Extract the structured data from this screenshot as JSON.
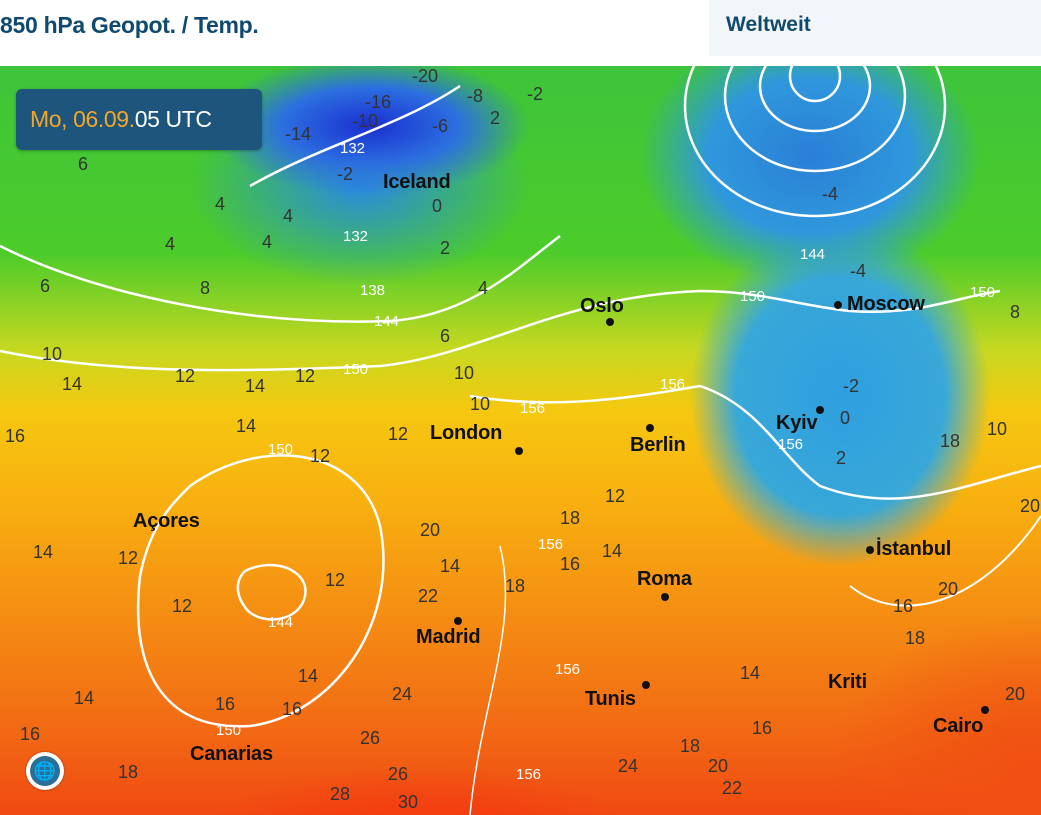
{
  "header": {
    "title": "850 hPa Geopot. / Temp.",
    "region": "Weltweit"
  },
  "timestamp": {
    "date": "Mo, 06.09.",
    "time": "05 UTC"
  },
  "globe_button": {
    "icon": "globe-icon"
  },
  "cities": [
    "Iceland",
    "Oslo",
    "Moscow",
    "London",
    "Berlin",
    "Kyiv",
    "Açores",
    "İstanbul",
    "Roma",
    "Madrid",
    "Tunis",
    "Kriti",
    "Cairo",
    "Canarias"
  ],
  "temperature_labels": [
    "-20",
    "-16",
    "-14",
    "-10",
    "-8",
    "-6",
    "-2",
    "2",
    "-2",
    "6",
    "4",
    "4",
    "6",
    "8",
    "4",
    "0",
    "4",
    "2",
    "4",
    "6",
    "-4",
    "-4",
    "-2",
    "8",
    "10",
    "10",
    "14",
    "12",
    "14",
    "12",
    "16",
    "14",
    "12",
    "12",
    "10",
    "0",
    "2",
    "10",
    "20",
    "14",
    "12",
    "12",
    "14",
    "12",
    "20",
    "16",
    "14",
    "12",
    "18",
    "16",
    "22",
    "18",
    "16",
    "14",
    "24",
    "14",
    "14",
    "16",
    "18",
    "16",
    "20",
    "26",
    "18",
    "26",
    "28",
    "30",
    "24",
    "18",
    "20",
    "22",
    "16",
    "20",
    "18"
  ],
  "geopotential_labels": [
    "132",
    "132",
    "138",
    "144",
    "150",
    "144",
    "150",
    "150",
    "156",
    "156",
    "156",
    "156",
    "144",
    "150",
    "156",
    "156",
    "150"
  ],
  "colors": {
    "header_text": "#0f4a6e",
    "badge_bg": "#1d557c",
    "badge_date": "#f5a623"
  }
}
